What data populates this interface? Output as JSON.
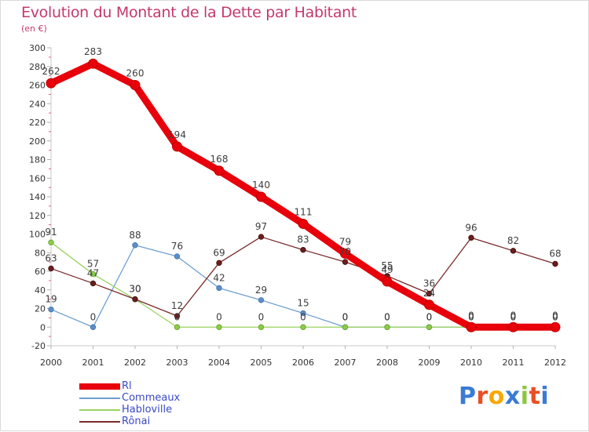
{
  "title": "Evolution du Montant de la Dette par Habitant",
  "subtitle": "(en €)",
  "logo": {
    "text": "Proxiti",
    "colors": [
      "#3a7bd5",
      "#e94e24",
      "#f6a800",
      "#3a7bd5",
      "#8cc63f",
      "#e94e24",
      "#3a7bd5"
    ]
  },
  "chart_data": {
    "type": "line",
    "x": [
      "2000",
      "2001",
      "2002",
      "2003",
      "2004",
      "2005",
      "2006",
      "2007",
      "2008",
      "2009",
      "2010",
      "2011",
      "2012"
    ],
    "ylim": [
      -20,
      300
    ],
    "yticks": [
      -20,
      0,
      20,
      40,
      60,
      80,
      100,
      120,
      140,
      160,
      180,
      200,
      220,
      240,
      260,
      280,
      300
    ],
    "grid": false,
    "legend": "bottom-left",
    "series": [
      {
        "name": "Rl",
        "color": "#e8000b",
        "values": [
          262,
          283,
          260,
          194,
          168,
          140,
          111,
          79,
          49,
          24,
          0,
          0,
          0
        ],
        "labels": [
          "262",
          "283",
          "260",
          "194",
          "168",
          "140",
          "111",
          "79",
          "49",
          "24",
          "0",
          "0",
          "0"
        ]
      },
      {
        "name": "Commeaux",
        "color": "#6d9fd0",
        "values": [
          19,
          0,
          88,
          76,
          42,
          29,
          15,
          0,
          0,
          0,
          0,
          0,
          0
        ],
        "labels": [
          "19",
          "0",
          "88",
          "76",
          "42",
          "29",
          "15",
          "0",
          "0",
          "0",
          "0",
          "0",
          "0"
        ]
      },
      {
        "name": "Habloville",
        "color": "#9ad35f",
        "values": [
          91,
          57,
          30,
          0,
          0,
          0,
          0,
          0,
          0,
          0,
          0,
          0,
          0
        ],
        "labels": [
          "91",
          "57",
          "30",
          "0",
          "0",
          "0",
          "0",
          "0",
          "0",
          "0",
          "0",
          "0",
          "0"
        ]
      },
      {
        "name": "Rônai",
        "color": "#7a2a2a",
        "values": [
          63,
          47,
          30,
          12,
          69,
          97,
          83,
          70,
          55,
          36,
          96,
          82,
          68
        ],
        "labels": [
          "63",
          "47",
          "30",
          "12",
          "69",
          "97",
          "83",
          "70",
          "55",
          "36",
          "96",
          "82",
          "68"
        ]
      }
    ]
  }
}
